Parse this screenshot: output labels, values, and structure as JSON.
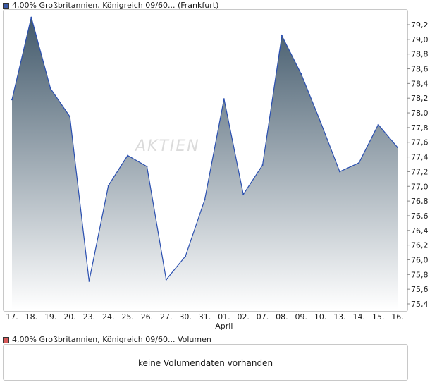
{
  "legend": {
    "price_label": "4,00% Großbritannien, Königreich 09/60... (Frankfurt)",
    "volume_label": "4,00% Großbritannien, Königreich 09/60... Volumen"
  },
  "volume_message": "keine Volumendaten vorhanden",
  "watermark": "AKTIEN",
  "colors": {
    "line": "#2a4fb0",
    "fill_top": "#42596b",
    "fill_bottom": "#ffffff",
    "price_swatch": "#3a5aa8",
    "volume_swatch": "#d85a5a"
  },
  "chart_data": {
    "type": "area",
    "categories": [
      "17.",
      "18.",
      "19.",
      "20.",
      "23.",
      "24.",
      "25.",
      "26.",
      "27.",
      "30.",
      "31.",
      "01.",
      "02.",
      "07.",
      "08.",
      "09.",
      "10.",
      "13.",
      "14.",
      "15.",
      "16."
    ],
    "month_label": {
      "text": "April",
      "under": "01."
    },
    "series": [
      {
        "values": [
          78.18,
          79.3,
          78.33,
          77.95,
          75.71,
          77.01,
          77.42,
          77.27,
          75.73,
          76.05,
          76.82,
          78.19,
          76.89,
          77.29,
          79.05,
          78.53,
          77.88,
          77.2,
          77.32,
          77.84,
          77.53
        ]
      }
    ],
    "yticks": [
      "75,4",
      "75,6",
      "75,8",
      "76,0",
      "76,2",
      "76,4",
      "76,6",
      "76,8",
      "77,0",
      "77,2",
      "77,4",
      "77,6",
      "77,8",
      "78,0",
      "78,2",
      "78,4",
      "78,6",
      "78,8",
      "79,0",
      "79,2"
    ],
    "ylim": [
      75.4,
      79.2
    ],
    "y_axis_position": "right",
    "grid": false
  }
}
